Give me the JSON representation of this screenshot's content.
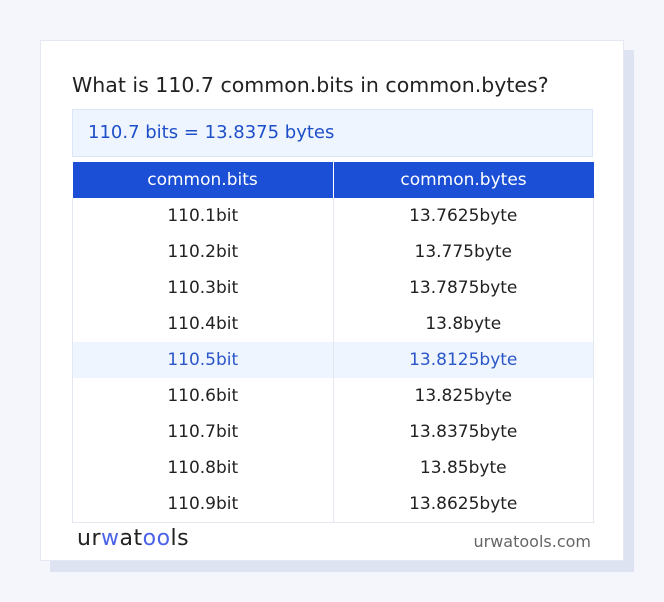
{
  "title": "What is 110.7 common.bits in common.bytes?",
  "result": "110.7 bits = 13.8375 bytes",
  "table": {
    "headers": [
      "common.bits",
      "common.bytes"
    ],
    "rows": [
      [
        "110.1bit",
        "13.7625byte"
      ],
      [
        "110.2bit",
        "13.775byte"
      ],
      [
        "110.3bit",
        "13.7875byte"
      ],
      [
        "110.4bit",
        "13.8byte"
      ],
      [
        "110.5bit",
        "13.8125byte"
      ],
      [
        "110.6bit",
        "13.825byte"
      ],
      [
        "110.7bit",
        "13.8375byte"
      ],
      [
        "110.8bit",
        "13.85byte"
      ],
      [
        "110.9bit",
        "13.8625byte"
      ]
    ],
    "highlighted_row": 4
  },
  "footer": {
    "logo": "urwatools",
    "site": "urwatools.com"
  },
  "colors": {
    "accent": "#1a4fd6",
    "highlight_bg": "#eef5ff",
    "result_text": "#1e4fc8"
  }
}
